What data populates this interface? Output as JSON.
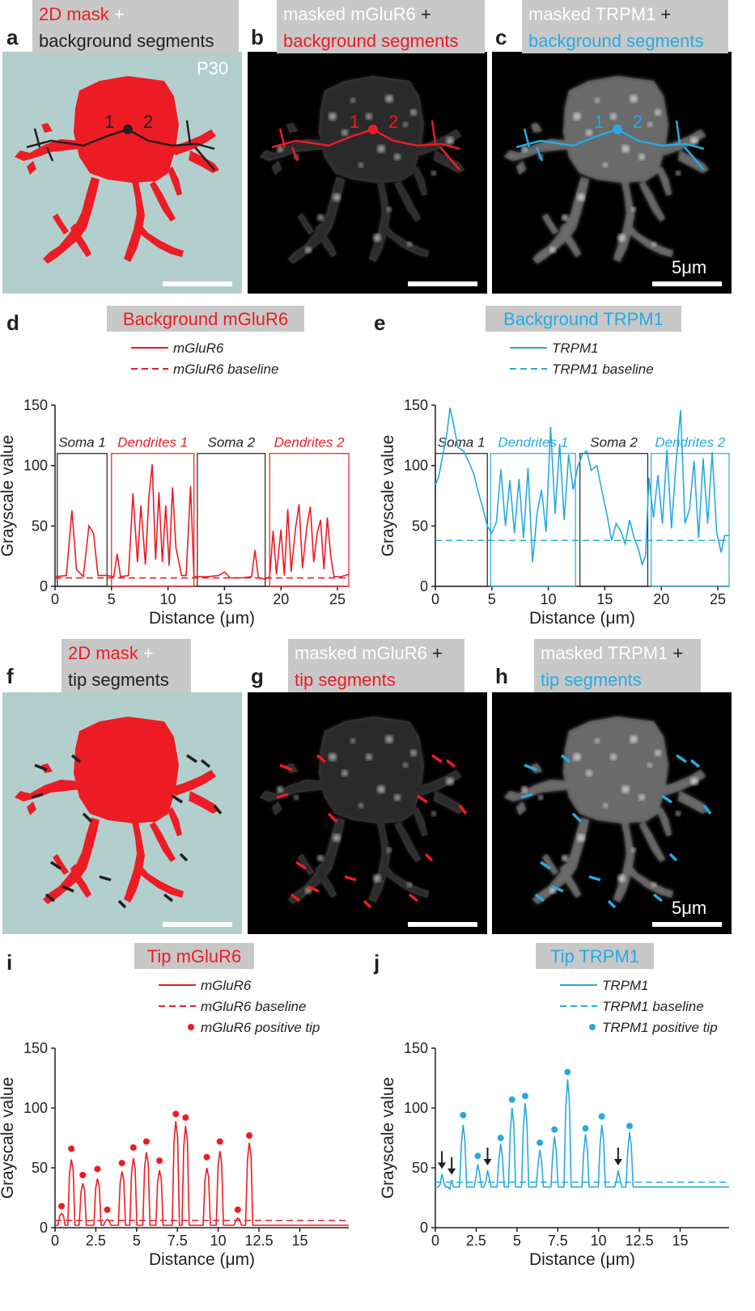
{
  "colors": {
    "red": "#ed1c24",
    "blue": "#27aae1",
    "dark": "#231f20",
    "mask_bg": "#b2cfce",
    "header_bg": "#c8c8c8"
  },
  "panels": {
    "a": {
      "letter": "a",
      "header": [
        "2D mask",
        " +",
        "background segments"
      ],
      "age": "P30"
    },
    "b": {
      "letter": "b",
      "header": [
        "masked mGluR6",
        " +",
        "background segments"
      ]
    },
    "c": {
      "letter": "c",
      "header": [
        "masked TRPM1",
        " +",
        "background segments"
      ],
      "scalebar": "5μm"
    },
    "d": {
      "letter": "d"
    },
    "e": {
      "letter": "e"
    },
    "f": {
      "letter": "f",
      "header": [
        "2D mask",
        " +",
        "tip segments"
      ]
    },
    "g": {
      "letter": "g",
      "header": [
        "masked mGluR6",
        " +",
        "tip segments"
      ]
    },
    "h": {
      "letter": "h",
      "header": [
        "masked TRPM1",
        " +",
        "tip segments"
      ],
      "scalebar": "5μm"
    },
    "i": {
      "letter": "i"
    },
    "j": {
      "letter": "j"
    }
  },
  "segment_labels": [
    "1",
    "2"
  ],
  "chart_data": [
    {
      "id": "d",
      "type": "line",
      "title": "Background mGluR6",
      "xlabel": "Distance (μm)",
      "ylabel": "Grayscale value",
      "xlim": [
        0,
        26
      ],
      "ylim": [
        0,
        150
      ],
      "xticks": [
        0,
        5,
        10,
        15,
        20,
        25
      ],
      "yticks": [
        0,
        50,
        100,
        150
      ],
      "legend": [
        "mGluR6",
        "mGluR6 baseline"
      ],
      "baseline": 7,
      "regions": [
        {
          "label": "Soma 1",
          "x0": 0.2,
          "x1": 4.6,
          "color": "dark"
        },
        {
          "label": "Dendrites 1",
          "x0": 5.0,
          "x1": 12.3,
          "color": "red"
        },
        {
          "label": "Soma 2",
          "x0": 12.6,
          "x1": 18.6,
          "color": "dark"
        },
        {
          "label": "Dendrites 2",
          "x0": 19.0,
          "x1": 26.0,
          "color": "red"
        }
      ],
      "series": [
        {
          "points": [
            [
              0,
              8
            ],
            [
              1.0,
              9
            ],
            [
              1.5,
              63
            ],
            [
              1.9,
              14
            ],
            [
              2.5,
              8
            ],
            [
              3.0,
              50
            ],
            [
              3.4,
              44
            ],
            [
              3.8,
              9
            ],
            [
              4.6,
              9
            ],
            [
              5.2,
              8
            ],
            [
              5.5,
              27
            ],
            [
              5.8,
              8
            ],
            [
              6.5,
              9
            ],
            [
              6.9,
              77
            ],
            [
              7.3,
              20
            ],
            [
              7.6,
              67
            ],
            [
              8.0,
              18
            ],
            [
              8.3,
              73
            ],
            [
              8.6,
              101
            ],
            [
              8.9,
              22
            ],
            [
              9.2,
              78
            ],
            [
              9.5,
              20
            ],
            [
              9.8,
              67
            ],
            [
              10.1,
              17
            ],
            [
              10.4,
              82
            ],
            [
              10.7,
              32
            ],
            [
              11.2,
              9
            ],
            [
              11.6,
              9
            ],
            [
              12.0,
              83
            ],
            [
              12.3,
              8
            ],
            [
              13.5,
              8
            ],
            [
              14.5,
              9
            ],
            [
              15.0,
              12
            ],
            [
              15.5,
              7
            ],
            [
              16.5,
              7
            ],
            [
              17.4,
              8
            ],
            [
              17.7,
              30
            ],
            [
              18.0,
              7
            ],
            [
              18.6,
              6
            ],
            [
              19.0,
              8
            ],
            [
              19.3,
              46
            ],
            [
              19.6,
              10
            ],
            [
              20.0,
              47
            ],
            [
              20.3,
              9
            ],
            [
              20.6,
              64
            ],
            [
              20.9,
              12
            ],
            [
              21.3,
              49
            ],
            [
              21.6,
              68
            ],
            [
              21.9,
              15
            ],
            [
              22.3,
              50
            ],
            [
              22.6,
              66
            ],
            [
              22.9,
              20
            ],
            [
              23.2,
              44
            ],
            [
              23.5,
              55
            ],
            [
              23.8,
              14
            ],
            [
              24.1,
              57
            ],
            [
              24.4,
              25
            ],
            [
              24.7,
              8
            ],
            [
              25.3,
              8
            ],
            [
              26.0,
              10
            ]
          ]
        }
      ]
    },
    {
      "id": "e",
      "type": "line",
      "title": "Background TRPM1",
      "xlabel": "Distance (μm)",
      "ylabel": "Grayscale value",
      "xlim": [
        0,
        26
      ],
      "ylim": [
        0,
        150
      ],
      "xticks": [
        0,
        5,
        10,
        15,
        20,
        25
      ],
      "yticks": [
        0,
        50,
        100,
        150
      ],
      "legend": [
        "TRPM1",
        "TRPM1 baseline"
      ],
      "baseline": 38,
      "regions": [
        {
          "label": "Soma 1",
          "x0": 0.0,
          "x1": 4.6,
          "color": "dark"
        },
        {
          "label": "Dendrites 1",
          "x0": 4.9,
          "x1": 12.4,
          "color": "blue"
        },
        {
          "label": "Soma 2",
          "x0": 12.8,
          "x1": 18.8,
          "color": "dark"
        },
        {
          "label": "Dendrites 2",
          "x0": 19.1,
          "x1": 26.0,
          "color": "blue"
        }
      ],
      "series": [
        {
          "points": [
            [
              0,
              84
            ],
            [
              0.3,
              91
            ],
            [
              0.7,
              111
            ],
            [
              1.0,
              125
            ],
            [
              1.3,
              148
            ],
            [
              1.7,
              130
            ],
            [
              2.0,
              115
            ],
            [
              2.5,
              112
            ],
            [
              3.0,
              102
            ],
            [
              3.4,
              93
            ],
            [
              3.8,
              78
            ],
            [
              4.2,
              65
            ],
            [
              4.6,
              50
            ],
            [
              5.0,
              44
            ],
            [
              5.4,
              53
            ],
            [
              5.8,
              97
            ],
            [
              6.2,
              50
            ],
            [
              6.6,
              88
            ],
            [
              7.0,
              44
            ],
            [
              7.4,
              89
            ],
            [
              7.8,
              40
            ],
            [
              8.2,
              98
            ],
            [
              8.6,
              20
            ],
            [
              9.0,
              60
            ],
            [
              9.4,
              80
            ],
            [
              9.8,
              45
            ],
            [
              10.2,
              132
            ],
            [
              10.6,
              60
            ],
            [
              11.0,
              118
            ],
            [
              11.4,
              55
            ],
            [
              11.8,
              109
            ],
            [
              12.2,
              80
            ],
            [
              12.6,
              99
            ],
            [
              13.0,
              109
            ],
            [
              13.4,
              112
            ],
            [
              13.8,
              96
            ],
            [
              14.3,
              100
            ],
            [
              14.7,
              81
            ],
            [
              15.2,
              59
            ],
            [
              15.6,
              38
            ],
            [
              16.0,
              52
            ],
            [
              16.4,
              46
            ],
            [
              16.8,
              35
            ],
            [
              17.2,
              55
            ],
            [
              17.6,
              40
            ],
            [
              18.0,
              30
            ],
            [
              18.3,
              18
            ],
            [
              18.6,
              25
            ],
            [
              18.9,
              90
            ],
            [
              19.3,
              57
            ],
            [
              19.7,
              92
            ],
            [
              20.1,
              52
            ],
            [
              20.5,
              113
            ],
            [
              20.9,
              48
            ],
            [
              21.3,
              102
            ],
            [
              21.7,
              146
            ],
            [
              22.1,
              52
            ],
            [
              22.5,
              64
            ],
            [
              22.9,
              104
            ],
            [
              23.3,
              40
            ],
            [
              23.7,
              106
            ],
            [
              24.1,
              52
            ],
            [
              24.5,
              111
            ],
            [
              24.9,
              45
            ],
            [
              25.3,
              28
            ],
            [
              25.6,
              42
            ],
            [
              26.0,
              42
            ]
          ]
        }
      ]
    },
    {
      "id": "i",
      "type": "line",
      "title": "Tip mGluR6",
      "xlabel": "Distance (μm)",
      "ylabel": "Grayscale value",
      "xlim": [
        0,
        18
      ],
      "ylim": [
        0,
        150
      ],
      "xticks": [
        0,
        2.5,
        5,
        7.5,
        10,
        12.5,
        15
      ],
      "xticklabels": [
        "0",
        "2.5",
        "5",
        "7.5",
        "10",
        "12.5",
        "15"
      ],
      "yticks": [
        0,
        50,
        100,
        150
      ],
      "legend": [
        "mGluR6",
        "mGluR6 baseline",
        "mGluR6 positive tip"
      ],
      "baseline": 6,
      "peaks": [
        [
          0.4,
          12
        ],
        [
          1.0,
          57
        ],
        [
          1.7,
          37
        ],
        [
          2.6,
          41
        ],
        [
          3.2,
          7
        ],
        [
          4.1,
          47
        ],
        [
          4.8,
          58
        ],
        [
          5.6,
          63
        ],
        [
          6.4,
          48
        ],
        [
          7.4,
          89
        ],
        [
          8.0,
          85
        ],
        [
          9.3,
          50
        ],
        [
          10.1,
          64
        ],
        [
          11.2,
          8
        ],
        [
          11.9,
          71
        ]
      ],
      "tips": [
        [
          0.4,
          18
        ],
        [
          1.0,
          66
        ],
        [
          1.7,
          44
        ],
        [
          2.6,
          49
        ],
        [
          3.2,
          15
        ],
        [
          4.1,
          54
        ],
        [
          4.8,
          67
        ],
        [
          5.6,
          72
        ],
        [
          6.4,
          56
        ],
        [
          7.4,
          95
        ],
        [
          8.0,
          92
        ],
        [
          9.3,
          59
        ],
        [
          10.1,
          72
        ],
        [
          11.2,
          15
        ],
        [
          11.9,
          77
        ]
      ]
    },
    {
      "id": "j",
      "type": "line",
      "title": "Tip TRPM1",
      "xlabel": "Distance (μm)",
      "ylabel": "Grayscale value",
      "xlim": [
        0,
        18
      ],
      "ylim": [
        0,
        150
      ],
      "xticks": [
        0,
        2.5,
        5,
        7.5,
        10,
        12.5,
        15
      ],
      "xticklabels": [
        "0",
        "2.5",
        "5",
        "7.5",
        "10",
        "12.5",
        "15"
      ],
      "yticks": [
        0,
        50,
        100,
        150
      ],
      "legend": [
        "TRPM1",
        "TRPM1 baseline",
        "TRPM1 positive tip"
      ],
      "baseline": 38,
      "peaks": [
        [
          0.4,
          45
        ],
        [
          1.0,
          40
        ],
        [
          1.7,
          86
        ],
        [
          2.6,
          53
        ],
        [
          3.2,
          48
        ],
        [
          4.0,
          70
        ],
        [
          4.7,
          100
        ],
        [
          5.5,
          104
        ],
        [
          6.4,
          65
        ],
        [
          7.3,
          76
        ],
        [
          8.1,
          124
        ],
        [
          9.2,
          78
        ],
        [
          10.2,
          86
        ],
        [
          11.2,
          48
        ],
        [
          11.9,
          80
        ]
      ],
      "tips": [
        [
          1.7,
          94
        ],
        [
          2.6,
          60
        ],
        [
          4.0,
          75
        ],
        [
          4.7,
          107
        ],
        [
          5.5,
          110
        ],
        [
          6.4,
          71
        ],
        [
          7.3,
          82
        ],
        [
          8.1,
          130
        ],
        [
          9.2,
          83
        ],
        [
          10.2,
          93
        ],
        [
          11.9,
          85
        ]
      ],
      "arrows": [
        0.4,
        1.0,
        3.2,
        11.2
      ]
    }
  ]
}
